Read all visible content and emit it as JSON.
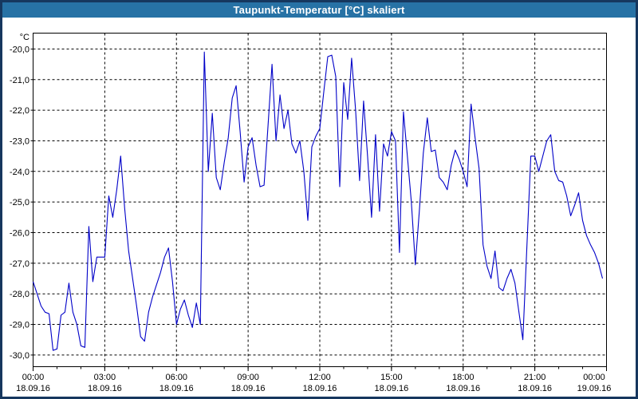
{
  "window": {
    "title": "Taupunkt-Temperatur [°C] skaliert"
  },
  "colors": {
    "titlebar_bg": "#2772A5",
    "titlebar_text": "#FFFFFF",
    "frame": "#16375E",
    "plot_border": "#000000",
    "grid": "#000000",
    "line": "#0000C8",
    "background": "#FFFFFF"
  },
  "chart_data": {
    "type": "line",
    "title": "Taupunkt-Temperatur [°C] skaliert",
    "grid": "dashed",
    "legend_position": "none",
    "y_axis": {
      "unit": "°C",
      "tick_labels": [
        "-20,0",
        "-21,0",
        "-22,0",
        "-23,0",
        "-24,0",
        "-25,0",
        "-26,0",
        "-27,0",
        "-28,0",
        "-29,0",
        "-30,0"
      ],
      "tick_values": [
        -20,
        -21,
        -22,
        -23,
        -24,
        -25,
        -26,
        -27,
        -28,
        -29,
        -30
      ],
      "min": -30,
      "max": -20
    },
    "x_axis": {
      "range_hours": 24,
      "major_tick_hours": 3,
      "minor_tick_hours": 1,
      "ticks": [
        {
          "time": "00:00",
          "date": "18.09.16"
        },
        {
          "time": "03:00",
          "date": "18.09.16"
        },
        {
          "time": "06:00",
          "date": "18.09.16"
        },
        {
          "time": "09:00",
          "date": "18.09.16"
        },
        {
          "time": "12:00",
          "date": "18.09.16"
        },
        {
          "time": "15:00",
          "date": "18.09.16"
        },
        {
          "time": "18:00",
          "date": "18.09.16"
        },
        {
          "time": "21:00",
          "date": "18.09.16"
        },
        {
          "time": "00:00",
          "date": "19.09.16"
        }
      ]
    },
    "series": [
      {
        "name": "Taupunkt-Temperatur",
        "color": "#0000C8",
        "start_time": "00:00",
        "interval_minutes": 10,
        "values": [
          -27.6,
          -28.0,
          -28.4,
          -28.6,
          -28.65,
          -29.85,
          -29.8,
          -28.7,
          -28.6,
          -27.65,
          -28.6,
          -29.0,
          -29.7,
          -29.75,
          -25.8,
          -27.6,
          -26.8,
          -26.8,
          -26.8,
          -24.8,
          -25.5,
          -24.6,
          -23.5,
          -25.2,
          -26.6,
          -27.5,
          -28.4,
          -29.4,
          -29.55,
          -28.6,
          -28.1,
          -27.7,
          -27.3,
          -26.8,
          -26.5,
          -27.6,
          -29.0,
          -28.5,
          -28.2,
          -28.7,
          -29.1,
          -28.3,
          -29.0,
          -20.1,
          -24.0,
          -22.1,
          -24.2,
          -24.6,
          -23.7,
          -22.9,
          -21.6,
          -21.2,
          -22.7,
          -24.35,
          -23.2,
          -22.9,
          -23.8,
          -24.5,
          -24.45,
          -22.5,
          -20.5,
          -23.0,
          -21.5,
          -22.6,
          -22.0,
          -23.1,
          -23.4,
          -23.0,
          -24.0,
          -25.6,
          -23.2,
          -22.85,
          -22.6,
          -21.4,
          -20.25,
          -20.2,
          -20.9,
          -24.5,
          -21.1,
          -22.3,
          -20.3,
          -22.0,
          -24.3,
          -21.7,
          -23.5,
          -25.5,
          -22.8,
          -25.3,
          -23.1,
          -23.5,
          -22.7,
          -23.0,
          -26.65,
          -22.05,
          -23.5,
          -25.0,
          -27.05,
          -25.3,
          -23.4,
          -22.25,
          -23.35,
          -23.3,
          -24.2,
          -24.35,
          -24.6,
          -23.8,
          -23.3,
          -23.6,
          -24.0,
          -24.5,
          -21.8,
          -22.9,
          -23.9,
          -26.4,
          -27.1,
          -27.5,
          -26.6,
          -27.8,
          -27.9,
          -27.5,
          -27.2,
          -27.65,
          -28.6,
          -29.5,
          -26.5,
          -23.5,
          -23.5,
          -24.0,
          -23.5,
          -23.0,
          -22.8,
          -24.0,
          -24.3,
          -24.35,
          -24.8,
          -25.45,
          -25.1,
          -24.7,
          -25.6,
          -26.1,
          -26.4,
          -26.65,
          -27.0,
          -27.5
        ]
      }
    ]
  }
}
